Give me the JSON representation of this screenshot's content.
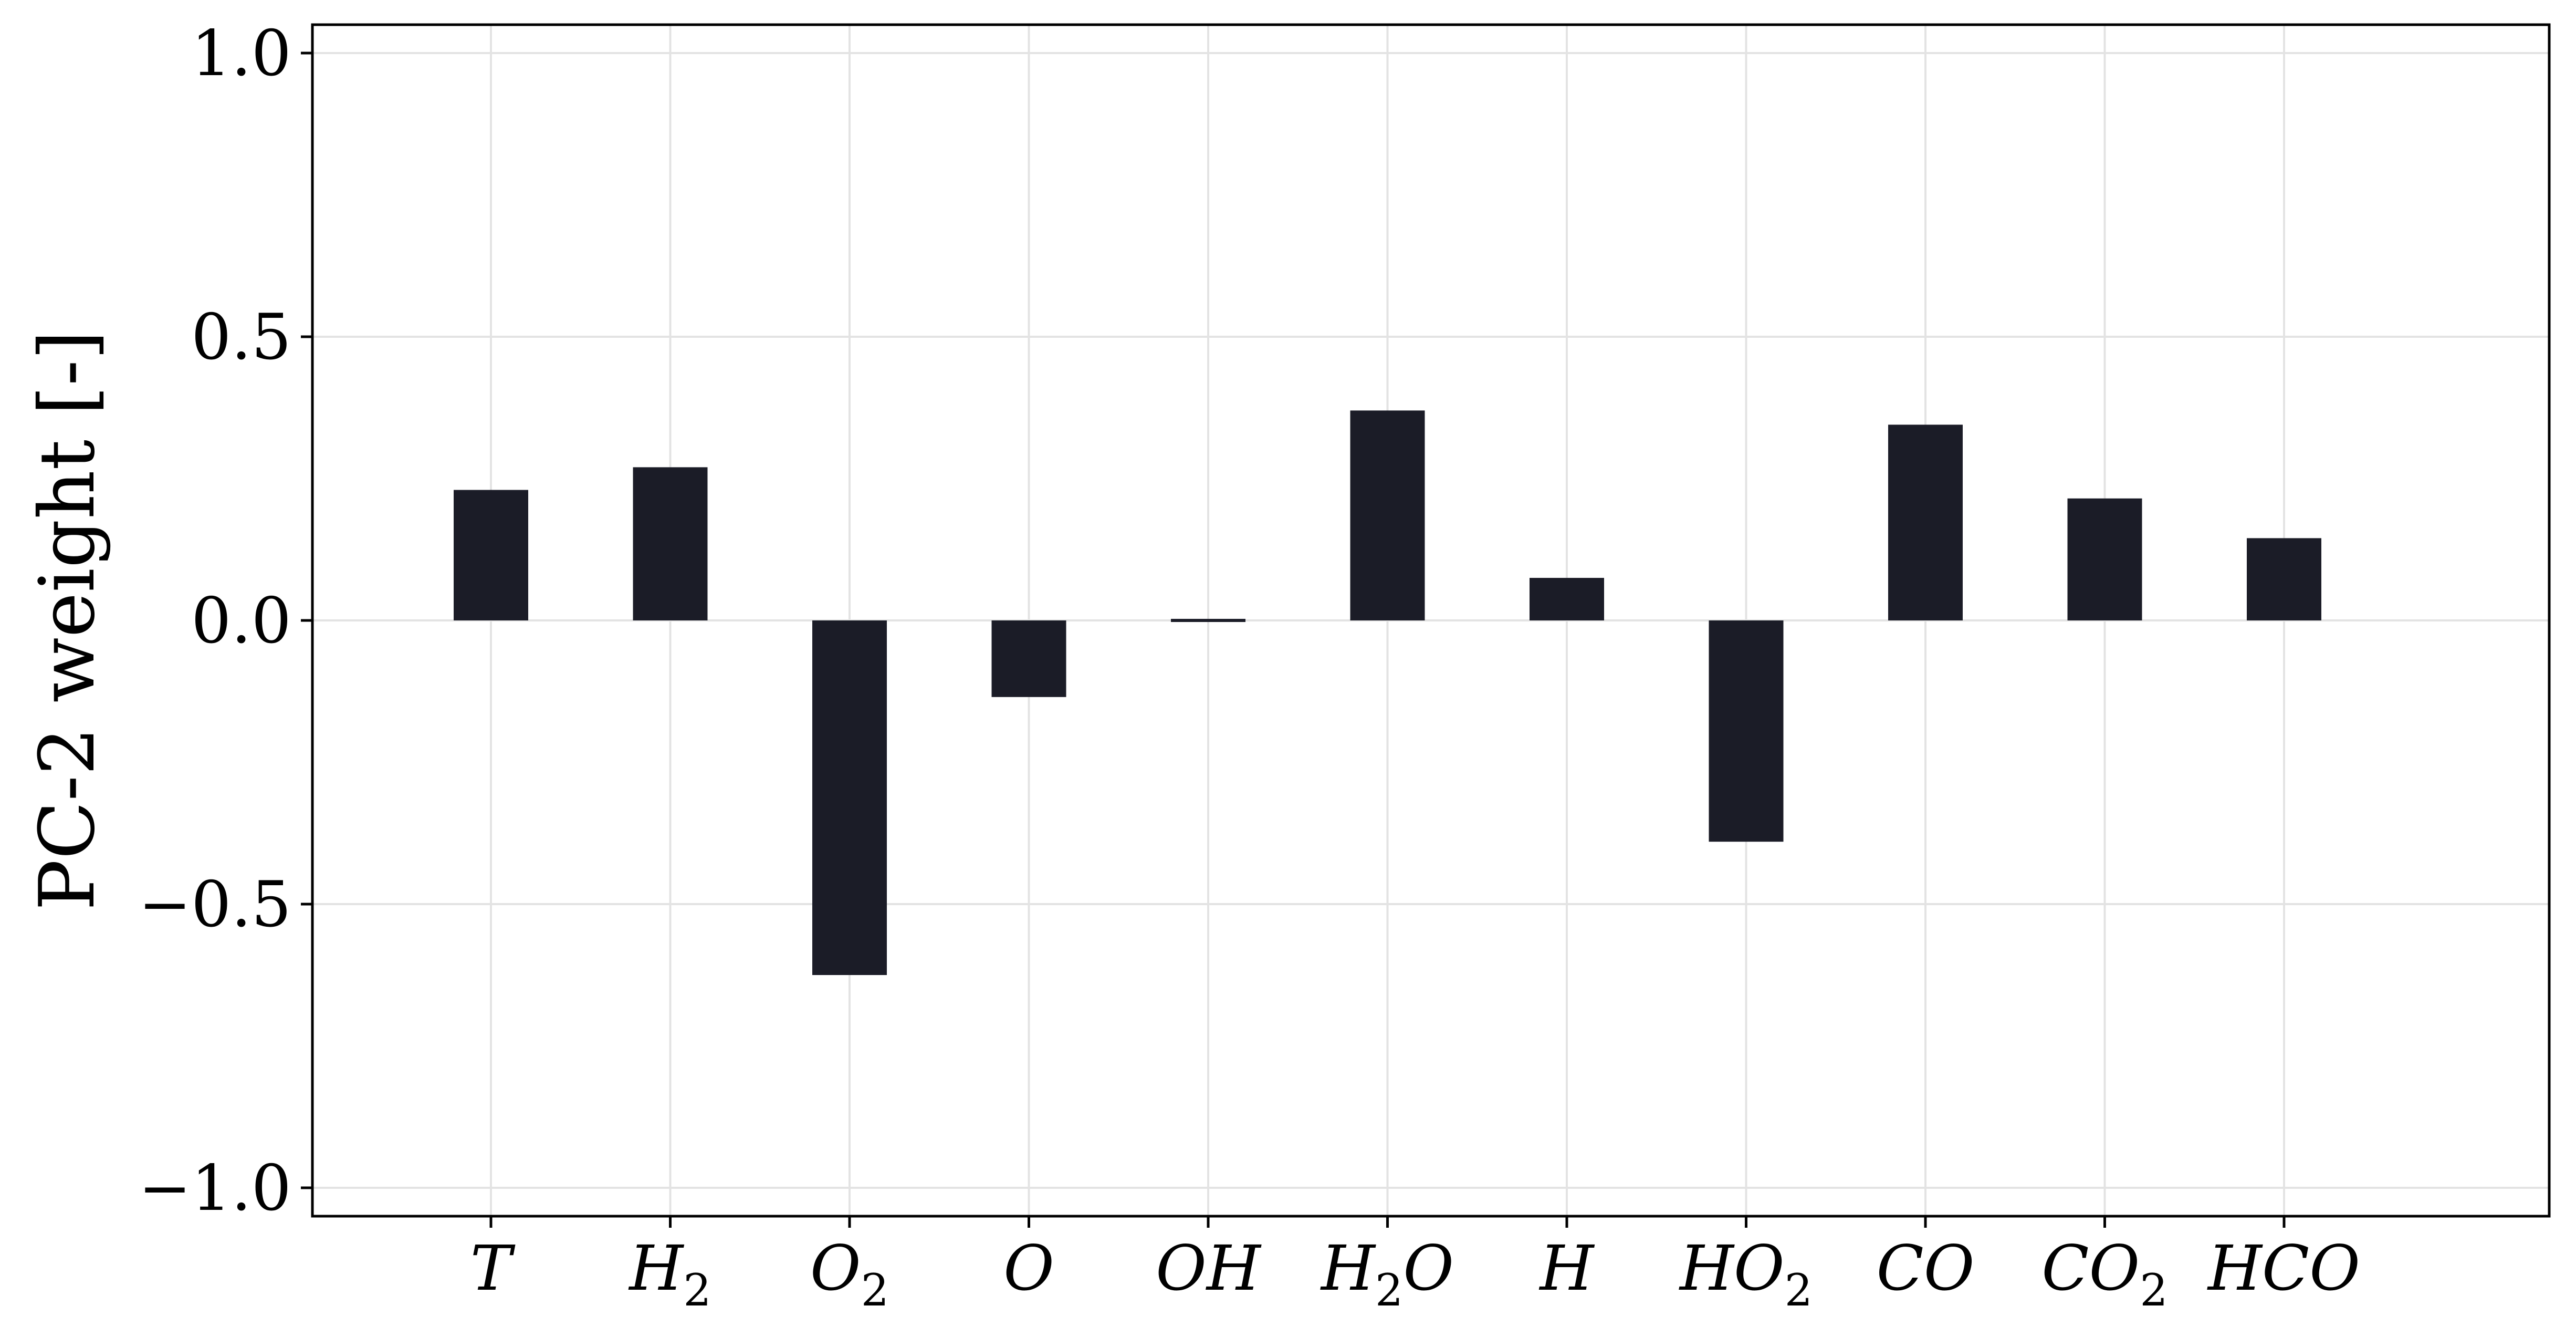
{
  "chart_data": {
    "type": "bar",
    "title": "",
    "xlabel": "",
    "ylabel": "PC-2 weight [-]",
    "categories": [
      {
        "base": "T",
        "sub": ""
      },
      {
        "base": "H",
        "sub": "2"
      },
      {
        "base": "O",
        "sub": "2"
      },
      {
        "base": "O",
        "sub": ""
      },
      {
        "base": "OH",
        "sub": ""
      },
      {
        "base": "H",
        "sub": "2",
        "tail": "O"
      },
      {
        "base": "H",
        "sub": ""
      },
      {
        "base": "HO",
        "sub": "2"
      },
      {
        "base": "CO",
        "sub": ""
      },
      {
        "base": "CO",
        "sub": "2"
      },
      {
        "base": "HCO",
        "sub": ""
      }
    ],
    "values": [
      0.23,
      0.27,
      -0.625,
      -0.135,
      -0.005,
      0.37,
      0.075,
      -0.39,
      0.345,
      0.215,
      0.145
    ],
    "ylim": [
      -1.05,
      1.05
    ],
    "yticks": [
      1.0,
      0.5,
      0.0,
      -0.5,
      -1.0
    ],
    "ytick_labels": [
      "1.0",
      "0.5",
      "0.0",
      "−0.5",
      "−1.0"
    ],
    "grid": true,
    "colors": {
      "bar": "#1b1c27",
      "grid": "#e3e3e3",
      "axis": "#000000"
    }
  }
}
